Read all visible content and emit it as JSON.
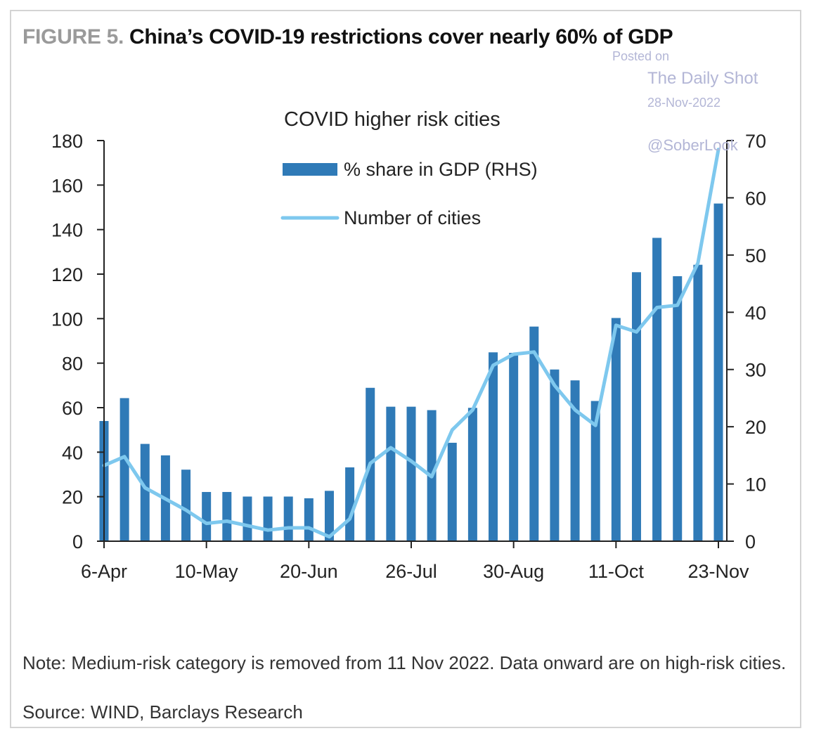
{
  "figure": {
    "label": "FIGURE 5.",
    "title": "China’s COVID-19 restrictions cover nearly 60% of GDP",
    "note": "Note: Medium-risk category is removed from 11 Nov 2022. Data onward are on high-risk cities.",
    "source": "Source: WIND, Barclays Research"
  },
  "watermark": {
    "posted": "Posted on",
    "site": "The Daily Shot",
    "date": "28-Nov-2022",
    "handle": "@SoberLook"
  },
  "chart_data": {
    "type": "bar",
    "title": "COVID higher risk cities",
    "x_tick_labels": [
      "6-Apr",
      "10-May",
      "20-Jun",
      "26-Jul",
      "30-Aug",
      "11-Oct",
      "23-Nov"
    ],
    "x_tick_positions": [
      0,
      5,
      10,
      15,
      20,
      25,
      30
    ],
    "left_axis": {
      "ylim": [
        0,
        180
      ],
      "ticks": [
        0,
        20,
        40,
        60,
        80,
        100,
        120,
        140,
        160,
        180
      ]
    },
    "right_axis": {
      "ylim": [
        0,
        70
      ],
      "ticks": [
        0,
        10,
        20,
        30,
        40,
        50,
        60,
        70
      ]
    },
    "grid": false,
    "legend_position": "top-center",
    "series": [
      {
        "name": "% share in GDP (RHS)",
        "type": "bar",
        "axis": "right",
        "color": "#2f7ab7",
        "values": [
          21,
          25,
          17,
          15,
          12.5,
          8.6,
          8.6,
          7.8,
          7.8,
          7.8,
          7.5,
          8.8,
          12.9,
          26.8,
          23.5,
          23.5,
          22.9,
          17.2,
          23.3,
          33,
          32.9,
          37.5,
          30,
          28.1,
          24.5,
          39,
          47,
          53,
          46.3,
          48.3,
          59
        ]
      },
      {
        "name": "Number of cities",
        "type": "line",
        "axis": "left",
        "color": "#7ec8ee",
        "values": [
          34,
          38,
          24,
          19,
          14,
          8,
          9,
          7,
          5,
          6,
          6,
          2,
          10,
          35,
          42,
          36,
          29,
          50,
          59,
          79,
          84,
          85,
          70,
          59,
          52,
          97,
          94,
          105,
          106,
          125,
          176
        ]
      }
    ]
  }
}
